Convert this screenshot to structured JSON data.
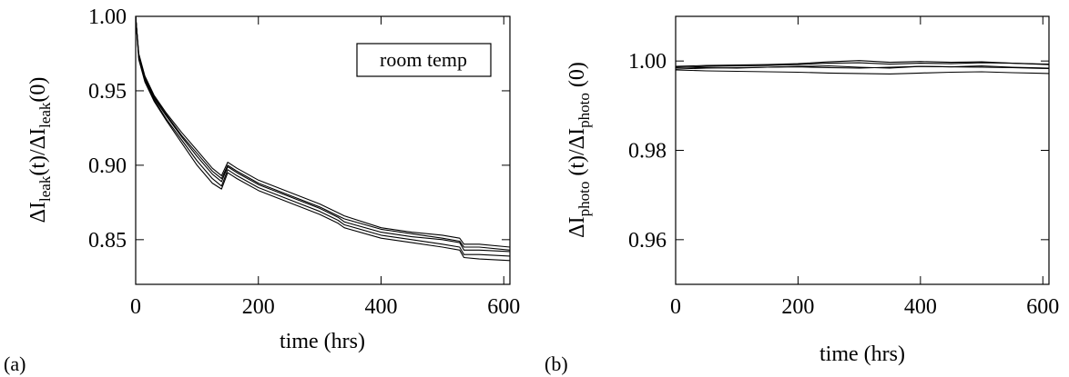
{
  "chart_data": [
    {
      "type": "line",
      "panel_label": "(a)",
      "xlabel": "time (hrs)",
      "ylabel": {
        "prefix": "ΔI",
        "sub": "leak",
        "mid": "(t)/ΔI",
        "sub2": "leak",
        "suffix": "(0)"
      },
      "legend_text": "room temp",
      "legend_placement": "top-right",
      "xlim": [
        0,
        610
      ],
      "ylim": [
        0.82,
        1.0
      ],
      "x_ticks": [
        0,
        200,
        400,
        600
      ],
      "x_tick_labels": [
        "0",
        "200",
        "400",
        "600"
      ],
      "y_ticks": [
        0.85,
        0.9,
        0.95,
        1.0
      ],
      "y_tick_labels": [
        "0.85",
        "0.90",
        "0.95",
        "1.00"
      ],
      "grid": false,
      "series": [
        {
          "x": [
            0,
            5,
            15,
            30,
            50,
            75,
            100,
            125,
            140,
            150,
            165,
            200,
            250,
            300,
            330,
            340,
            400,
            450,
            500,
            528,
            535,
            560,
            610
          ],
          "y": [
            1.0,
            0.975,
            0.96,
            0.947,
            0.935,
            0.922,
            0.91,
            0.898,
            0.893,
            0.902,
            0.898,
            0.89,
            0.882,
            0.874,
            0.868,
            0.866,
            0.858,
            0.855,
            0.853,
            0.851,
            0.847,
            0.847,
            0.845
          ]
        },
        {
          "x": [
            0,
            5,
            15,
            30,
            50,
            75,
            100,
            125,
            140,
            150,
            165,
            200,
            250,
            300,
            330,
            340,
            400,
            450,
            500,
            528,
            535,
            560,
            610
          ],
          "y": [
            1.0,
            0.973,
            0.958,
            0.945,
            0.933,
            0.919,
            0.906,
            0.894,
            0.889,
            0.899,
            0.895,
            0.887,
            0.879,
            0.871,
            0.865,
            0.862,
            0.855,
            0.852,
            0.85,
            0.848,
            0.843,
            0.843,
            0.842
          ]
        },
        {
          "x": [
            0,
            5,
            15,
            30,
            50,
            75,
            100,
            125,
            140,
            150,
            165,
            200,
            250,
            300,
            330,
            340,
            400,
            450,
            500,
            528,
            535,
            560,
            610
          ],
          "y": [
            1.0,
            0.972,
            0.957,
            0.944,
            0.931,
            0.917,
            0.903,
            0.891,
            0.886,
            0.897,
            0.893,
            0.885,
            0.877,
            0.869,
            0.863,
            0.86,
            0.853,
            0.85,
            0.847,
            0.845,
            0.84,
            0.84,
            0.839
          ]
        },
        {
          "x": [
            0,
            5,
            15,
            30,
            50,
            75,
            100,
            125,
            140,
            150,
            165,
            200,
            250,
            300,
            330,
            340,
            400,
            450,
            500,
            528,
            535,
            560,
            610
          ],
          "y": [
            1.0,
            0.971,
            0.956,
            0.943,
            0.93,
            0.915,
            0.9,
            0.888,
            0.884,
            0.895,
            0.891,
            0.883,
            0.875,
            0.867,
            0.861,
            0.858,
            0.851,
            0.848,
            0.845,
            0.843,
            0.838,
            0.837,
            0.836
          ]
        },
        {
          "x": [
            0,
            5,
            15,
            30,
            50,
            75,
            100,
            125,
            140,
            150,
            165,
            200,
            250,
            300,
            330,
            340,
            400,
            450,
            500,
            528,
            535,
            560,
            610
          ],
          "y": [
            1.0,
            0.974,
            0.959,
            0.946,
            0.934,
            0.92,
            0.908,
            0.896,
            0.891,
            0.9,
            0.896,
            0.888,
            0.88,
            0.872,
            0.866,
            0.864,
            0.857,
            0.854,
            0.851,
            0.849,
            0.845,
            0.845,
            0.843
          ]
        }
      ]
    },
    {
      "type": "line",
      "panel_label": "(b)",
      "xlabel": "time (hrs)",
      "ylabel": {
        "prefix": "ΔI",
        "sub": "photo",
        "mid": " (t)/ΔI",
        "sub2": "photo",
        "suffix": " (0)"
      },
      "xlim": [
        0,
        610
      ],
      "ylim": [
        0.95,
        1.01
      ],
      "x_ticks": [
        0,
        200,
        400,
        600
      ],
      "x_tick_labels": [
        "0",
        "200",
        "400",
        "600"
      ],
      "y_ticks": [
        0.96,
        0.98,
        1.0
      ],
      "y_tick_labels": [
        "0.96",
        "0.98",
        "1.00"
      ],
      "grid": false,
      "series": [
        {
          "x": [
            0,
            50,
            100,
            150,
            200,
            250,
            300,
            350,
            400,
            450,
            500,
            550,
            610
          ],
          "y": [
            0.9985,
            0.9988,
            0.9989,
            0.999,
            0.9992,
            0.9995,
            0.9996,
            0.9993,
            0.9995,
            0.9994,
            0.9996,
            0.9995,
            0.9993
          ]
        },
        {
          "x": [
            0,
            50,
            100,
            150,
            200,
            250,
            300,
            350,
            400,
            450,
            500,
            550,
            610
          ],
          "y": [
            0.9982,
            0.9984,
            0.9985,
            0.9986,
            0.9988,
            0.9989,
            0.9986,
            0.9984,
            0.9988,
            0.9987,
            0.9989,
            0.9986,
            0.9984
          ]
        },
        {
          "x": [
            0,
            50,
            100,
            150,
            200,
            250,
            300,
            350,
            400,
            450,
            500,
            550,
            610
          ],
          "y": [
            0.9988,
            0.999,
            0.9991,
            0.9992,
            0.9994,
            0.9998,
            1.0001,
            0.9997,
            0.9999,
            0.9997,
            0.9998,
            0.9995,
            0.9992
          ]
        },
        {
          "x": [
            0,
            50,
            100,
            150,
            200,
            250,
            300,
            350,
            400,
            450,
            500,
            550,
            610
          ],
          "y": [
            0.998,
            0.9978,
            0.9977,
            0.9976,
            0.9975,
            0.9973,
            0.9972,
            0.9971,
            0.9973,
            0.9975,
            0.9976,
            0.9974,
            0.9972
          ]
        },
        {
          "x": [
            0,
            50,
            100,
            150,
            200,
            250,
            300,
            350,
            400,
            450,
            500,
            550,
            610
          ],
          "y": [
            0.9986,
            0.9985,
            0.9984,
            0.9986,
            0.9987,
            0.9985,
            0.9984,
            0.9986,
            0.9988,
            0.9987,
            0.9986,
            0.9985,
            0.9983
          ]
        }
      ]
    }
  ]
}
